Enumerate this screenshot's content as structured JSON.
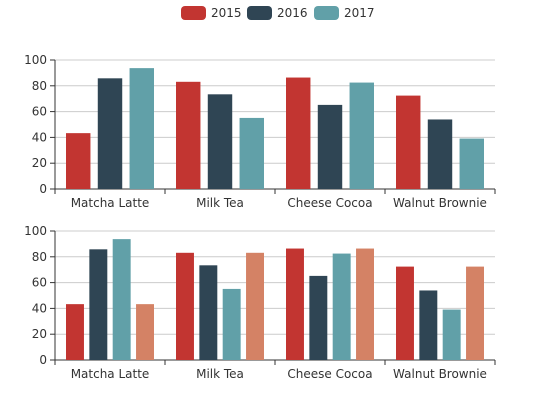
{
  "legend": {
    "items": [
      {
        "label": "2015",
        "color": "#c23531"
      },
      {
        "label": "2016",
        "color": "#2f4554"
      },
      {
        "label": "2017",
        "color": "#61a0a8"
      }
    ]
  },
  "chart_data": [
    {
      "type": "bar",
      "categories": [
        "Matcha Latte",
        "Milk Tea",
        "Cheese Cocoa",
        "Walnut Brownie"
      ],
      "series": [
        {
          "name": "2015",
          "color": "#c23531",
          "values": [
            43.3,
            83.1,
            86.4,
            72.4
          ]
        },
        {
          "name": "2016",
          "color": "#2f4554",
          "values": [
            85.8,
            73.4,
            65.2,
            53.9
          ]
        },
        {
          "name": "2017",
          "color": "#61a0a8",
          "values": [
            93.7,
            55.1,
            82.5,
            39.1
          ]
        }
      ],
      "ylim": [
        0,
        100
      ],
      "yticks": [
        0,
        20,
        40,
        60,
        80,
        100
      ],
      "grid": true,
      "legend": "top-center"
    },
    {
      "type": "bar",
      "categories": [
        "Matcha Latte",
        "Milk Tea",
        "Cheese Cocoa",
        "Walnut Brownie"
      ],
      "series": [
        {
          "color": "#c23531",
          "values": [
            43.3,
            83.1,
            86.4,
            72.4
          ]
        },
        {
          "color": "#2f4554",
          "values": [
            85.8,
            73.4,
            65.2,
            53.9
          ]
        },
        {
          "color": "#61a0a8",
          "values": [
            93.7,
            55.1,
            82.5,
            39.1
          ]
        },
        {
          "color": "#d48265",
          "values": [
            43.3,
            83.1,
            86.4,
            72.4
          ]
        }
      ],
      "ylim": [
        0,
        100
      ],
      "yticks": [
        0,
        20,
        40,
        60,
        80,
        100
      ],
      "grid": true
    }
  ]
}
